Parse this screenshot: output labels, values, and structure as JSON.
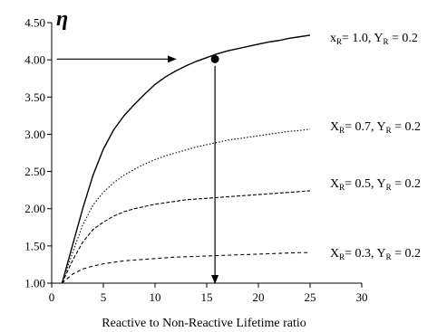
{
  "chart_data": {
    "type": "line",
    "title": "",
    "ylabel": "η",
    "xlabel": "Reactive to Non-Reactive Lifetime ratio",
    "xlim": [
      0,
      30
    ],
    "ylim": [
      1.0,
      4.5
    ],
    "x_ticks": [
      "0",
      "5",
      "10",
      "15",
      "20",
      "25",
      "30"
    ],
    "y_ticks": [
      "1.00",
      "1.50",
      "2.00",
      "2.50",
      "3.00",
      "3.50",
      "4.00",
      "4.50"
    ],
    "grid": false,
    "series": [
      {
        "name": "xR= 1.0, YR = 0.2",
        "label_parts": [
          {
            "text": "x",
            "sub": false
          },
          {
            "text": "R",
            "sub": true
          },
          {
            "text": "= 1.0, Y",
            "sub": false
          },
          {
            "text": "R",
            "sub": true
          },
          {
            "text": " = 0.2",
            "sub": false
          }
        ],
        "style": "solid",
        "x": [
          1,
          2,
          3,
          4,
          5,
          6,
          7,
          8,
          9,
          10,
          11,
          12,
          13,
          14,
          15,
          16,
          17,
          18,
          19,
          20,
          21,
          22,
          23,
          24,
          25
        ],
        "y": [
          1.0,
          1.5,
          2.0,
          2.45,
          2.8,
          3.06,
          3.25,
          3.4,
          3.54,
          3.67,
          3.77,
          3.85,
          3.92,
          3.98,
          4.03,
          4.08,
          4.12,
          4.15,
          4.18,
          4.21,
          4.24,
          4.26,
          4.29,
          4.31,
          4.33
        ]
      },
      {
        "name": "XR= 0.7, YR = 0.2",
        "label_parts": [
          {
            "text": "X",
            "sub": false
          },
          {
            "text": "R",
            "sub": true
          },
          {
            "text": "= 0.7, Y",
            "sub": false
          },
          {
            "text": "R",
            "sub": true
          },
          {
            "text": " = 0.2",
            "sub": false
          }
        ],
        "style": "dotted",
        "x": [
          1,
          2,
          3,
          4,
          5,
          6,
          7,
          8,
          9,
          10,
          11,
          12,
          13,
          14,
          15,
          16,
          17,
          18,
          19,
          20,
          21,
          22,
          23,
          24,
          25
        ],
        "y": [
          1.0,
          1.4,
          1.78,
          2.05,
          2.22,
          2.35,
          2.45,
          2.53,
          2.6,
          2.66,
          2.71,
          2.75,
          2.79,
          2.83,
          2.86,
          2.89,
          2.92,
          2.94,
          2.96,
          2.98,
          3.0,
          3.02,
          3.04,
          3.05,
          3.07
        ]
      },
      {
        "name": "XR= 0.5, YR = 0.2",
        "label_parts": [
          {
            "text": "X",
            "sub": false
          },
          {
            "text": "R",
            "sub": true
          },
          {
            "text": "= 0.5, Y",
            "sub": false
          },
          {
            "text": "R",
            "sub": true
          },
          {
            "text": " = 0.2",
            "sub": false
          }
        ],
        "style": "dashed",
        "x": [
          1,
          2,
          3,
          4,
          5,
          6,
          7,
          8,
          9,
          10,
          11,
          12,
          13,
          14,
          15,
          16,
          17,
          18,
          19,
          20,
          21,
          22,
          23,
          24,
          25
        ],
        "y": [
          1.0,
          1.3,
          1.55,
          1.72,
          1.82,
          1.9,
          1.96,
          2.0,
          2.03,
          2.06,
          2.08,
          2.1,
          2.12,
          2.13,
          2.14,
          2.15,
          2.16,
          2.17,
          2.18,
          2.19,
          2.2,
          2.21,
          2.22,
          2.23,
          2.24
        ]
      },
      {
        "name": "XR= 0.3, YR = 0.2",
        "label_parts": [
          {
            "text": "X",
            "sub": false
          },
          {
            "text": "R",
            "sub": true
          },
          {
            "text": "= 0.3, Y",
            "sub": false
          },
          {
            "text": "R",
            "sub": true
          },
          {
            "text": " = 0.2",
            "sub": false
          }
        ],
        "style": "dashed-fine",
        "x": [
          1,
          2,
          3,
          4,
          5,
          6,
          7,
          8,
          9,
          10,
          11,
          12,
          13,
          14,
          15,
          16,
          17,
          18,
          19,
          20,
          21,
          22,
          23,
          24,
          25
        ],
        "y": [
          1.0,
          1.12,
          1.19,
          1.23,
          1.26,
          1.28,
          1.3,
          1.31,
          1.32,
          1.33,
          1.34,
          1.35,
          1.355,
          1.36,
          1.365,
          1.37,
          1.375,
          1.38,
          1.385,
          1.39,
          1.395,
          1.4,
          1.405,
          1.41,
          1.41
        ]
      }
    ],
    "annotations": {
      "marker": {
        "x": 15.8,
        "y": 4.01
      },
      "horizontal_arrow": {
        "x_from": 0.5,
        "x_to": 12.0,
        "y": 4.01
      },
      "vertical_arrow": {
        "x": 15.8,
        "y_from": 3.92,
        "y_to": 1.0
      }
    }
  }
}
